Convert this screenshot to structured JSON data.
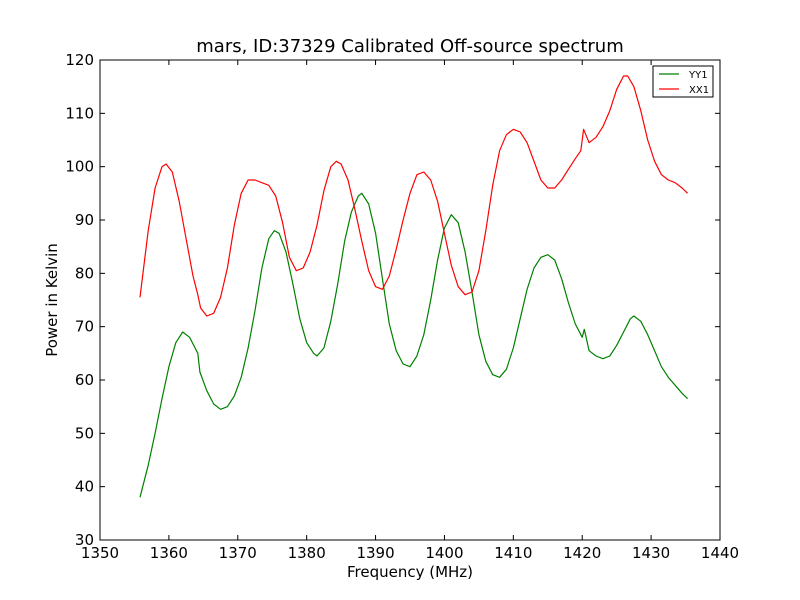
{
  "chart_data": {
    "type": "line",
    "title": "mars, ID:37329 Calibrated Off-source spectrum",
    "xlabel": "Frequency (MHz)",
    "ylabel": "Power in Kelvin",
    "xlim": [
      1350,
      1440
    ],
    "ylim": [
      30,
      120
    ],
    "xticks": [
      1350,
      1360,
      1370,
      1380,
      1390,
      1400,
      1410,
      1420,
      1430,
      1440
    ],
    "yticks": [
      30,
      40,
      50,
      60,
      70,
      80,
      90,
      100,
      110,
      120
    ],
    "grid": false,
    "legend_position": "top-right",
    "series": [
      {
        "name": "YY1",
        "color": "#008000",
        "points": [
          [
            1355.8,
            38.0
          ],
          [
            1357.0,
            44.0
          ],
          [
            1358.0,
            50.0
          ],
          [
            1359.0,
            56.5
          ],
          [
            1360.0,
            62.5
          ],
          [
            1361.0,
            67.0
          ],
          [
            1362.0,
            69.0
          ],
          [
            1363.0,
            68.0
          ],
          [
            1363.8,
            66.0
          ],
          [
            1364.2,
            65.0
          ],
          [
            1364.5,
            61.5
          ],
          [
            1365.5,
            58.0
          ],
          [
            1366.5,
            55.5
          ],
          [
            1367.5,
            54.5
          ],
          [
            1368.5,
            55.0
          ],
          [
            1369.5,
            57.0
          ],
          [
            1370.5,
            60.5
          ],
          [
            1371.5,
            66.0
          ],
          [
            1372.5,
            73.0
          ],
          [
            1373.5,
            81.0
          ],
          [
            1374.5,
            86.5
          ],
          [
            1375.3,
            88.0
          ],
          [
            1376.0,
            87.5
          ],
          [
            1377.0,
            84.0
          ],
          [
            1378.0,
            78.0
          ],
          [
            1379.0,
            71.5
          ],
          [
            1380.0,
            67.0
          ],
          [
            1381.0,
            65.0
          ],
          [
            1381.5,
            64.5
          ],
          [
            1382.5,
            66.0
          ],
          [
            1383.5,
            71.0
          ],
          [
            1384.5,
            78.0
          ],
          [
            1385.5,
            86.0
          ],
          [
            1386.5,
            91.5
          ],
          [
            1387.5,
            94.5
          ],
          [
            1388.0,
            95.0
          ],
          [
            1389.0,
            93.0
          ],
          [
            1390.0,
            87.5
          ],
          [
            1391.0,
            79.0
          ],
          [
            1392.0,
            70.5
          ],
          [
            1393.0,
            65.5
          ],
          [
            1394.0,
            63.0
          ],
          [
            1395.0,
            62.5
          ],
          [
            1396.0,
            64.5
          ],
          [
            1397.0,
            68.5
          ],
          [
            1398.0,
            75.0
          ],
          [
            1399.0,
            82.5
          ],
          [
            1400.0,
            88.5
          ],
          [
            1401.0,
            91.0
          ],
          [
            1402.0,
            89.5
          ],
          [
            1403.0,
            84.0
          ],
          [
            1404.0,
            76.5
          ],
          [
            1405.0,
            68.5
          ],
          [
            1406.0,
            63.5
          ],
          [
            1407.0,
            61.0
          ],
          [
            1408.0,
            60.5
          ],
          [
            1409.0,
            62.0
          ],
          [
            1410.0,
            66.0
          ],
          [
            1411.0,
            71.5
          ],
          [
            1412.0,
            77.0
          ],
          [
            1413.0,
            81.0
          ],
          [
            1414.0,
            83.0
          ],
          [
            1415.0,
            83.5
          ],
          [
            1416.0,
            82.5
          ],
          [
            1417.0,
            79.0
          ],
          [
            1418.0,
            74.5
          ],
          [
            1419.0,
            70.5
          ],
          [
            1420.0,
            68.0
          ],
          [
            1420.3,
            69.5
          ],
          [
            1421.0,
            65.5
          ],
          [
            1422.0,
            64.5
          ],
          [
            1423.0,
            64.0
          ],
          [
            1424.0,
            64.5
          ],
          [
            1425.0,
            66.5
          ],
          [
            1426.0,
            69.0
          ],
          [
            1427.0,
            71.5
          ],
          [
            1427.5,
            72.0
          ],
          [
            1428.5,
            71.0
          ],
          [
            1429.5,
            68.5
          ],
          [
            1430.5,
            65.5
          ],
          [
            1431.5,
            62.5
          ],
          [
            1432.5,
            60.5
          ],
          [
            1433.5,
            59.0
          ],
          [
            1434.5,
            57.5
          ],
          [
            1435.3,
            56.5
          ]
        ]
      },
      {
        "name": "XX1",
        "color": "#ff0000",
        "points": [
          [
            1355.8,
            75.5
          ],
          [
            1357.0,
            88.0
          ],
          [
            1358.0,
            96.0
          ],
          [
            1359.0,
            100.0
          ],
          [
            1359.6,
            100.5
          ],
          [
            1360.5,
            99.0
          ],
          [
            1361.5,
            93.5
          ],
          [
            1362.5,
            86.5
          ],
          [
            1363.5,
            79.5
          ],
          [
            1364.2,
            76.0
          ],
          [
            1364.6,
            73.5
          ],
          [
            1365.5,
            72.0
          ],
          [
            1366.5,
            72.5
          ],
          [
            1367.5,
            75.5
          ],
          [
            1368.5,
            81.0
          ],
          [
            1369.5,
            89.0
          ],
          [
            1370.5,
            95.0
          ],
          [
            1371.5,
            97.5
          ],
          [
            1372.5,
            97.5
          ],
          [
            1373.5,
            97.0
          ],
          [
            1374.5,
            96.5
          ],
          [
            1375.5,
            94.5
          ],
          [
            1376.5,
            89.5
          ],
          [
            1377.5,
            83.0
          ],
          [
            1378.5,
            80.5
          ],
          [
            1379.5,
            81.0
          ],
          [
            1380.5,
            84.0
          ],
          [
            1381.5,
            89.0
          ],
          [
            1382.5,
            95.5
          ],
          [
            1383.5,
            100.0
          ],
          [
            1384.3,
            101.0
          ],
          [
            1385.0,
            100.5
          ],
          [
            1386.0,
            97.5
          ],
          [
            1387.0,
            92.0
          ],
          [
            1388.0,
            86.0
          ],
          [
            1389.0,
            80.5
          ],
          [
            1390.0,
            77.5
          ],
          [
            1391.0,
            77.0
          ],
          [
            1392.0,
            79.5
          ],
          [
            1393.0,
            84.5
          ],
          [
            1394.0,
            90.0
          ],
          [
            1395.0,
            95.0
          ],
          [
            1396.0,
            98.5
          ],
          [
            1397.0,
            99.0
          ],
          [
            1398.0,
            97.5
          ],
          [
            1399.0,
            93.5
          ],
          [
            1400.0,
            87.5
          ],
          [
            1401.0,
            81.5
          ],
          [
            1402.0,
            77.5
          ],
          [
            1403.0,
            76.0
          ],
          [
            1404.0,
            76.5
          ],
          [
            1405.0,
            80.5
          ],
          [
            1406.0,
            88.0
          ],
          [
            1407.0,
            96.5
          ],
          [
            1408.0,
            103.0
          ],
          [
            1409.0,
            106.0
          ],
          [
            1410.0,
            107.0
          ],
          [
            1411.0,
            106.5
          ],
          [
            1412.0,
            104.5
          ],
          [
            1413.0,
            101.0
          ],
          [
            1414.0,
            97.5
          ],
          [
            1415.0,
            96.0
          ],
          [
            1416.0,
            96.0
          ],
          [
            1417.0,
            97.5
          ],
          [
            1418.0,
            99.5
          ],
          [
            1419.0,
            101.5
          ],
          [
            1419.8,
            103.0
          ],
          [
            1420.2,
            107.0
          ],
          [
            1421.0,
            104.5
          ],
          [
            1422.0,
            105.5
          ],
          [
            1423.0,
            107.5
          ],
          [
            1424.0,
            110.5
          ],
          [
            1425.0,
            114.5
          ],
          [
            1426.0,
            117.0
          ],
          [
            1426.6,
            117.0
          ],
          [
            1427.5,
            115.0
          ],
          [
            1428.5,
            110.5
          ],
          [
            1429.5,
            105.0
          ],
          [
            1430.5,
            101.0
          ],
          [
            1431.5,
            98.5
          ],
          [
            1432.5,
            97.5
          ],
          [
            1433.5,
            97.0
          ],
          [
            1434.5,
            96.0
          ],
          [
            1435.3,
            95.0
          ]
        ]
      }
    ]
  }
}
